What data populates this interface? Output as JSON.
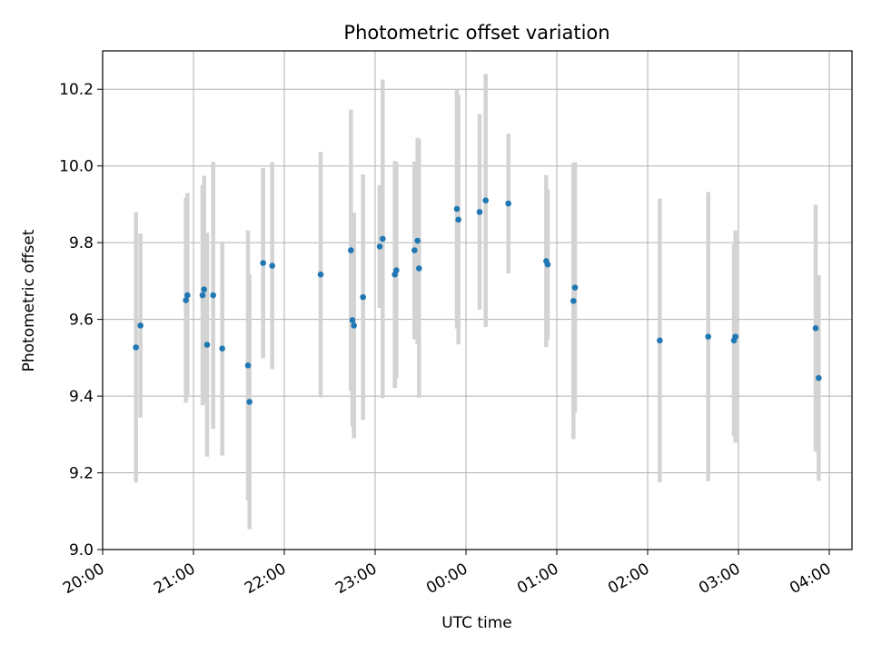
{
  "chart_data": {
    "type": "scatter",
    "title": "Photometric offset variation",
    "xlabel": "UTC time",
    "ylabel": "Photometric offset",
    "x_unit": "UTC time (HH:MM, 20:00 to 04:00+)",
    "xlim": [
      "20:00",
      "04:15"
    ],
    "ylim": [
      9.0,
      10.3
    ],
    "grid": true,
    "x_ticks": [
      "20:00",
      "21:00",
      "22:00",
      "23:00",
      "00:00",
      "01:00",
      "02:00",
      "03:00",
      "04:00"
    ],
    "y_ticks": [
      "9.0",
      "9.2",
      "9.4",
      "9.6",
      "9.8",
      "10.0",
      "10.2"
    ],
    "marker_color": "#1f77b4",
    "errorbar_color": "#d3d3d3",
    "points": [
      {
        "t": "20:22",
        "y": 9.527,
        "err": 0.352
      },
      {
        "t": "20:25",
        "y": 9.584,
        "err": 0.24
      },
      {
        "t": "20:55",
        "y": 9.65,
        "err": 0.267
      },
      {
        "t": "20:56",
        "y": 9.663,
        "err": 0.266
      },
      {
        "t": "21:06",
        "y": 9.663,
        "err": 0.287
      },
      {
        "t": "21:07",
        "y": 9.678,
        "err": 0.296
      },
      {
        "t": "21:09",
        "y": 9.534,
        "err": 0.292
      },
      {
        "t": "21:13",
        "y": 9.663,
        "err": 0.348
      },
      {
        "t": "21:19",
        "y": 9.524,
        "err": 0.279
      },
      {
        "t": "21:36",
        "y": 9.48,
        "err": 0.352
      },
      {
        "t": "21:37",
        "y": 9.385,
        "err": 0.332
      },
      {
        "t": "21:46",
        "y": 9.747,
        "err": 0.248
      },
      {
        "t": "21:52",
        "y": 9.74,
        "err": 0.27
      },
      {
        "t": "22:24",
        "y": 9.717,
        "err": 0.32
      },
      {
        "t": "22:44",
        "y": 9.78,
        "err": 0.367
      },
      {
        "t": "22:45",
        "y": 9.598,
        "err": 0.277
      },
      {
        "t": "22:46",
        "y": 9.584,
        "err": 0.294
      },
      {
        "t": "22:52",
        "y": 9.658,
        "err": 0.32
      },
      {
        "t": "23:03",
        "y": 9.79,
        "err": 0.16
      },
      {
        "t": "23:05",
        "y": 9.81,
        "err": 0.415
      },
      {
        "t": "23:13",
        "y": 9.717,
        "err": 0.296
      },
      {
        "t": "23:14",
        "y": 9.728,
        "err": 0.282
      },
      {
        "t": "23:26",
        "y": 9.78,
        "err": 0.232
      },
      {
        "t": "23:28",
        "y": 9.805,
        "err": 0.269
      },
      {
        "t": "23:29",
        "y": 9.733,
        "err": 0.337
      },
      {
        "t": "23:54",
        "y": 9.888,
        "err": 0.312
      },
      {
        "t": "23:55",
        "y": 9.86,
        "err": 0.325
      },
      {
        "t": "00:09",
        "y": 9.88,
        "err": 0.255
      },
      {
        "t": "00:13",
        "y": 9.91,
        "err": 0.33
      },
      {
        "t": "00:28",
        "y": 9.902,
        "err": 0.182
      },
      {
        "t": "00:53",
        "y": 9.752,
        "err": 0.224
      },
      {
        "t": "00:54",
        "y": 9.743,
        "err": 0.196
      },
      {
        "t": "01:11",
        "y": 9.648,
        "err": 0.36
      },
      {
        "t": "01:12",
        "y": 9.683,
        "err": 0.327
      },
      {
        "t": "02:08",
        "y": 9.545,
        "err": 0.37
      },
      {
        "t": "02:40",
        "y": 9.555,
        "err": 0.377
      },
      {
        "t": "02:57",
        "y": 9.545,
        "err": 0.25
      },
      {
        "t": "02:58",
        "y": 9.555,
        "err": 0.277
      },
      {
        "t": "03:51",
        "y": 9.577,
        "err": 0.322
      },
      {
        "t": "03:53",
        "y": 9.447,
        "err": 0.268
      }
    ]
  }
}
